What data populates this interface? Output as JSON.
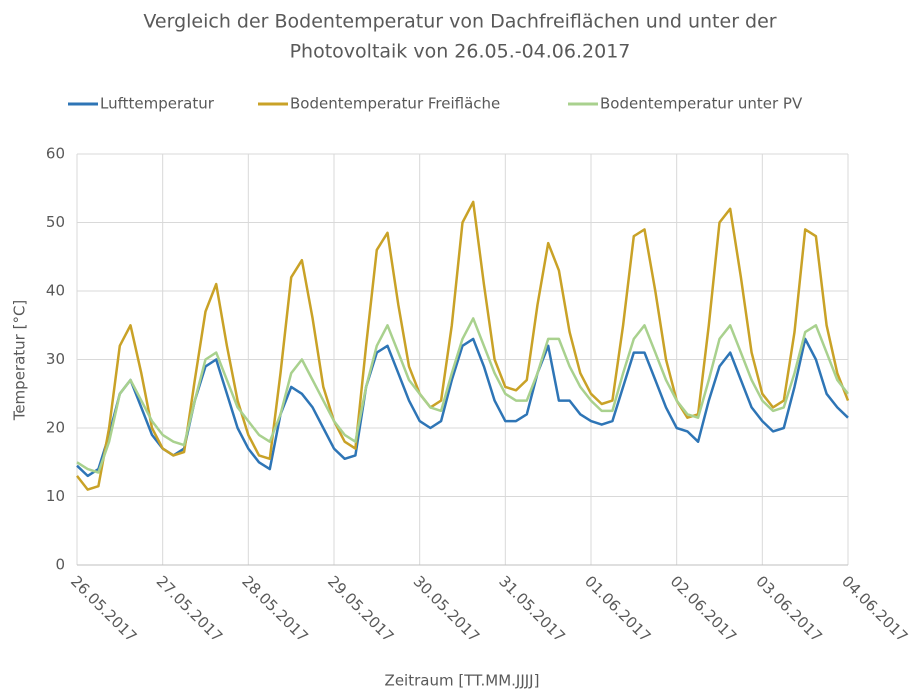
{
  "chart_data": {
    "type": "line",
    "title": [
      "Vergleich der Bodentemperatur von Dachfreiflächen und unter der",
      "Photovoltaik von 26.05.-04.06.2017"
    ],
    "x_label": "Zeitraum [TT.MM.JJJJ]",
    "y_label": "Temperatur [°C]",
    "x": [
      0,
      0.125,
      0.25,
      0.375,
      0.5,
      0.625,
      0.75,
      0.875,
      1,
      1.125,
      1.25,
      1.375,
      1.5,
      1.625,
      1.75,
      1.875,
      2,
      2.125,
      2.25,
      2.375,
      2.5,
      2.625,
      2.75,
      2.875,
      3,
      3.125,
      3.25,
      3.375,
      3.5,
      3.625,
      3.75,
      3.875,
      4,
      4.125,
      4.25,
      4.375,
      4.5,
      4.625,
      4.75,
      4.875,
      5,
      5.125,
      5.25,
      5.375,
      5.5,
      5.625,
      5.75,
      5.875,
      6,
      6.125,
      6.25,
      6.375,
      6.5,
      6.625,
      6.75,
      6.875,
      7,
      7.125,
      7.25,
      7.375,
      7.5,
      7.625,
      7.75,
      7.875,
      8,
      8.125,
      8.25,
      8.375,
      8.5,
      8.625,
      8.75,
      8.875,
      9
    ],
    "series": [
      {
        "name": "Lufttemperatur",
        "color": "#2e75b6",
        "values": [
          14.5,
          13,
          14,
          19,
          25,
          27,
          23,
          19,
          17,
          16,
          17,
          24,
          29,
          30,
          25,
          20,
          17,
          15,
          14,
          22,
          26,
          25,
          23,
          20,
          17,
          15.5,
          16,
          26,
          31,
          32,
          28,
          24,
          21,
          20,
          21,
          27,
          32,
          33,
          29,
          24,
          21,
          21,
          22,
          28,
          32,
          24,
          24,
          22,
          21,
          20.5,
          21,
          26,
          31,
          31,
          27,
          23,
          20,
          19.5,
          18,
          24,
          29,
          31,
          27,
          23,
          21,
          19.5,
          20,
          26,
          33,
          30,
          25,
          23,
          21.5
        ]
      },
      {
        "name": "Bodentemperatur Freifläche",
        "color": "#c9a227",
        "values": [
          13,
          11,
          11.5,
          20,
          32,
          35,
          28,
          20,
          17,
          16,
          16.5,
          27,
          37,
          41,
          32,
          24,
          19,
          16,
          15.5,
          28,
          42,
          44.5,
          36,
          26,
          21,
          18,
          17,
          32,
          46,
          48.5,
          38,
          29,
          25,
          23,
          24,
          35,
          50,
          53,
          41,
          30,
          26,
          25.5,
          27,
          38,
          47,
          43,
          34,
          28,
          25,
          23.5,
          24,
          35,
          48,
          49,
          40,
          30,
          24,
          21.5,
          22,
          35,
          50,
          52,
          42,
          31,
          25,
          23,
          24,
          34,
          49,
          48,
          35,
          28,
          24
        ]
      },
      {
        "name": "Bodentemperatur unter PV",
        "color": "#a9d18e",
        "values": [
          15,
          14,
          13.5,
          18,
          25,
          27,
          24,
          21,
          19,
          18,
          17.5,
          24,
          30,
          31,
          27,
          23,
          21,
          19,
          18,
          22,
          28,
          30,
          27,
          24,
          21,
          19,
          18,
          26,
          32,
          35,
          31,
          27,
          25,
          23,
          22.5,
          28,
          33,
          36,
          32,
          28,
          25,
          24,
          24,
          28,
          33,
          33,
          29,
          26,
          24,
          22.5,
          22.5,
          28,
          33,
          35,
          31,
          27,
          24,
          22,
          21.5,
          27,
          33,
          35,
          31,
          27,
          24,
          22.5,
          23,
          28,
          34,
          35,
          31,
          27,
          25
        ]
      }
    ],
    "xlim": [
      0,
      9
    ],
    "xticks": [
      {
        "value": 0,
        "label": "26.05.2017"
      },
      {
        "value": 1,
        "label": "27.05.2017"
      },
      {
        "value": 2,
        "label": "28.05.2017"
      },
      {
        "value": 3,
        "label": "29.05.2017"
      },
      {
        "value": 4,
        "label": "30.05.2017"
      },
      {
        "value": 5,
        "label": "31.05.2017"
      },
      {
        "value": 6,
        "label": "01.06.2017"
      },
      {
        "value": 7,
        "label": "02.06.2017"
      },
      {
        "value": 8,
        "label": "03.06.2017"
      },
      {
        "value": 9,
        "label": "04.06.2017"
      }
    ],
    "ylim": [
      0,
      60
    ],
    "yticks": [
      0,
      10,
      20,
      30,
      40,
      50,
      60
    ],
    "grid": true,
    "legend": "top"
  }
}
